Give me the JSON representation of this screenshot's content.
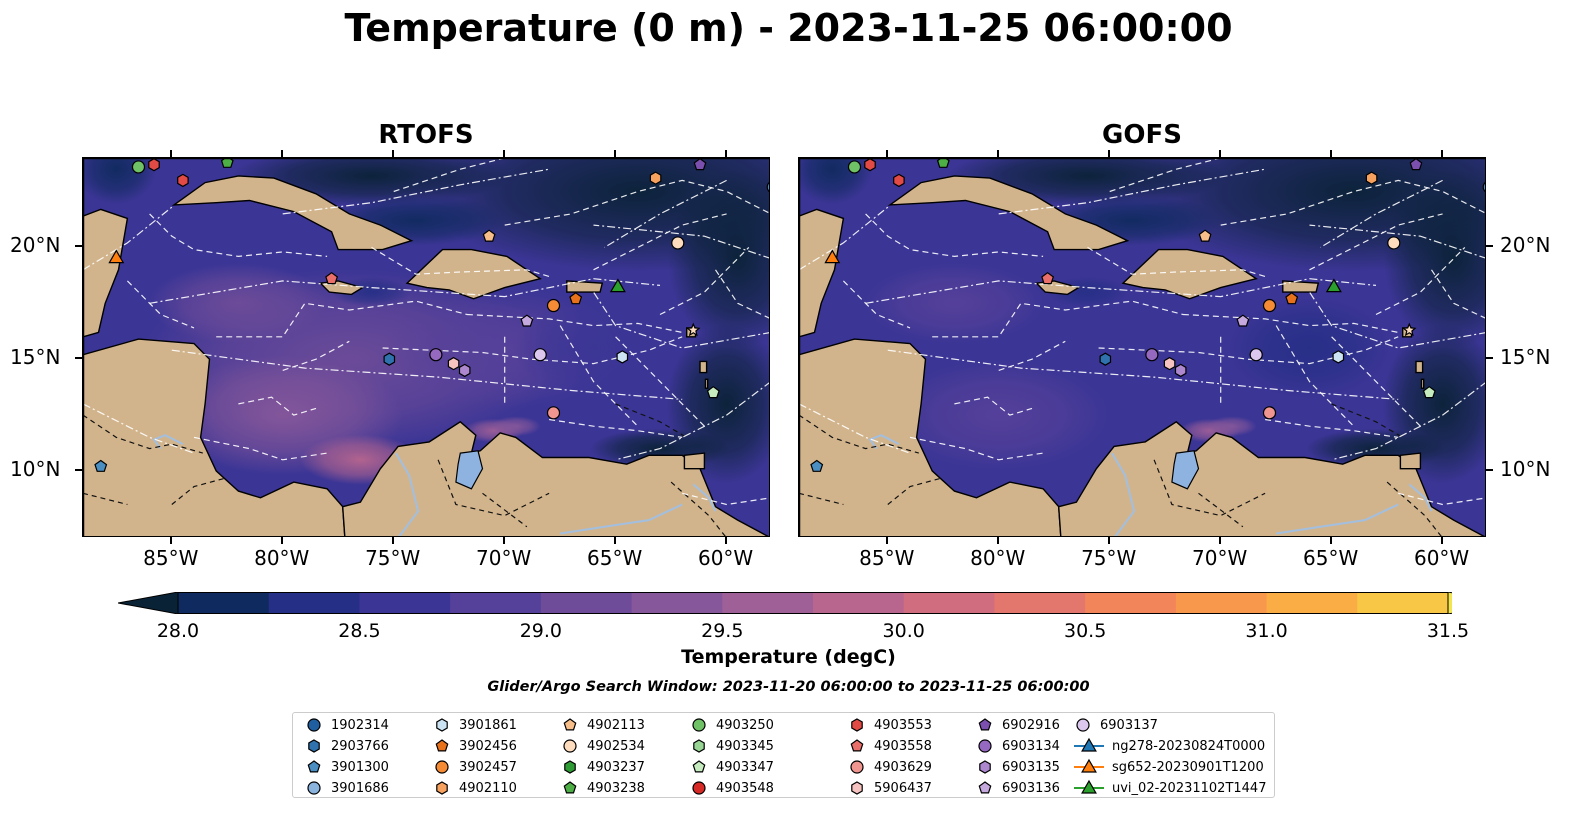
{
  "title": "Temperature (0 m) - 2023-11-25 06:00:00",
  "panels": [
    {
      "title": "RTOFS",
      "palette": "rtofs"
    },
    {
      "title": "GOFS",
      "palette": "gofs"
    }
  ],
  "axes": {
    "lon_ticks": [
      "85°W",
      "80°W",
      "75°W",
      "70°W",
      "65°W",
      "60°W"
    ],
    "lat_ticks": [
      "20°N",
      "15°N",
      "10°N"
    ],
    "lon_range": [
      -89,
      -58
    ],
    "lat_range": [
      7,
      24
    ]
  },
  "colorbar": {
    "label": "Temperature (degC)",
    "ticks": [
      "28.0",
      "28.5",
      "29.0",
      "29.5",
      "30.0",
      "30.5",
      "31.0",
      "31.5"
    ],
    "min": 28.0,
    "max": 31.5,
    "colors": [
      "#0a2236",
      "#0f2a5e",
      "#262f86",
      "#3b3595",
      "#56419a",
      "#6e4c99",
      "#86579a",
      "#9f5f97",
      "#b8668e",
      "#d06e80",
      "#e4776d",
      "#f2855a",
      "#f8984c",
      "#fbad45",
      "#f8c746",
      "#f2e550"
    ]
  },
  "search_window": "Glider/Argo Search Window: 2023-11-20 06:00:00 to 2023-11-25 06:00:00",
  "legend": {
    "columns": [
      [
        {
          "label": "1902314",
          "marker": "circle",
          "color": "#1f5fa0"
        },
        {
          "label": "2903766",
          "marker": "hexagon",
          "color": "#2f72ad"
        },
        {
          "label": "3901300",
          "marker": "pentagon",
          "color": "#4a8ec2"
        },
        {
          "label": "3901686",
          "marker": "circle",
          "color": "#8ab4de"
        }
      ],
      [
        {
          "label": "3901861",
          "marker": "hexagon",
          "color": "#cbe3f3"
        },
        {
          "label": "3902456",
          "marker": "pentagon",
          "color": "#e8721c"
        },
        {
          "label": "3902457",
          "marker": "circle",
          "color": "#f58b35"
        },
        {
          "label": "4902110",
          "marker": "hexagon",
          "color": "#f7a15e"
        }
      ],
      [
        {
          "label": "4902113",
          "marker": "pentagon",
          "color": "#f8be8a"
        },
        {
          "label": "4902534",
          "marker": "circle",
          "color": "#fcdcbd"
        },
        {
          "label": "4903237",
          "marker": "hexagon",
          "color": "#2e9b35"
        },
        {
          "label": "4903238",
          "marker": "pentagon",
          "color": "#4cae44"
        }
      ],
      [
        {
          "label": "4903250",
          "marker": "circle",
          "color": "#6fc266"
        },
        {
          "label": "4903345",
          "marker": "hexagon",
          "color": "#98d594"
        },
        {
          "label": "4903347",
          "marker": "pentagon",
          "color": "#c5ebbf"
        },
        {
          "label": "4903548",
          "marker": "circle",
          "color": "#d62a26"
        }
      ],
      [
        {
          "label": "4903553",
          "marker": "hexagon",
          "color": "#e24a45"
        },
        {
          "label": "4903558",
          "marker": "pentagon",
          "color": "#ea6f6a"
        },
        {
          "label": "4903629",
          "marker": "circle",
          "color": "#f09590"
        },
        {
          "label": "5906437",
          "marker": "hexagon",
          "color": "#f7c3c0"
        }
      ],
      [
        {
          "label": "6902916",
          "marker": "pentagon",
          "color": "#7b4fae"
        },
        {
          "label": "6903134",
          "marker": "circle",
          "color": "#9669c0"
        },
        {
          "label": "6903135",
          "marker": "hexagon",
          "color": "#ad88cf"
        },
        {
          "label": "6903136",
          "marker": "pentagon",
          "color": "#c6a9de"
        }
      ],
      [
        {
          "label": "6903137",
          "marker": "circle",
          "color": "#dcc8ee"
        },
        {
          "label": "ng278-20230824T0000",
          "marker": "triangle-line",
          "color": "#1f77b4"
        },
        {
          "label": "sg652-20230901T1200",
          "marker": "triangle-line",
          "color": "#ff7f0e"
        },
        {
          "label": "uvi_02-20231102T1447",
          "marker": "triangle-line",
          "color": "#2ca02c"
        }
      ]
    ]
  },
  "map_points": [
    {
      "lon": -86.5,
      "lat": 23.6,
      "marker": "circle",
      "color": "#6fc266"
    },
    {
      "lon": -85.8,
      "lat": 23.7,
      "marker": "hexagon",
      "color": "#e24a45"
    },
    {
      "lon": -84.5,
      "lat": 23.0,
      "marker": "hexagon",
      "color": "#e24a45"
    },
    {
      "lon": -82.5,
      "lat": 23.8,
      "marker": "pentagon",
      "color": "#4cae44"
    },
    {
      "lon": -63.2,
      "lat": 23.1,
      "marker": "hexagon",
      "color": "#f7a15e"
    },
    {
      "lon": -61.2,
      "lat": 23.7,
      "marker": "pentagon",
      "color": "#7b4fae"
    },
    {
      "lon": -87.5,
      "lat": 19.5,
      "marker": "triangle",
      "color": "#ff7f0e"
    },
    {
      "lon": -70.7,
      "lat": 20.5,
      "marker": "pentagon",
      "color": "#f8be8a"
    },
    {
      "lon": -62.2,
      "lat": 20.2,
      "marker": "circle",
      "color": "#fcdcbd"
    },
    {
      "lon": -77.8,
      "lat": 18.6,
      "marker": "pentagon",
      "color": "#ea6f6a"
    },
    {
      "lon": -67.8,
      "lat": 17.4,
      "marker": "circle",
      "color": "#f58b35"
    },
    {
      "lon": -66.8,
      "lat": 17.7,
      "marker": "pentagon",
      "color": "#e8721c"
    },
    {
      "lon": -64.9,
      "lat": 18.2,
      "marker": "triangle",
      "color": "#2ca02c"
    },
    {
      "lon": -69.0,
      "lat": 16.7,
      "marker": "pentagon",
      "color": "#c6a9de"
    },
    {
      "lon": -61.5,
      "lat": 16.3,
      "marker": "star",
      "color": "#fcdcbd"
    },
    {
      "lon": -75.2,
      "lat": 15.0,
      "marker": "hexagon",
      "color": "#2f72ad"
    },
    {
      "lon": -73.1,
      "lat": 15.2,
      "marker": "circle",
      "color": "#9669c0"
    },
    {
      "lon": -72.3,
      "lat": 14.8,
      "marker": "hexagon",
      "color": "#f7c3c0"
    },
    {
      "lon": -71.8,
      "lat": 14.5,
      "marker": "hexagon",
      "color": "#ad88cf"
    },
    {
      "lon": -68.4,
      "lat": 15.2,
      "marker": "circle",
      "color": "#dcc8ee"
    },
    {
      "lon": -64.7,
      "lat": 15.1,
      "marker": "hexagon",
      "color": "#cbe3f3"
    },
    {
      "lon": -60.6,
      "lat": 13.5,
      "marker": "pentagon",
      "color": "#c5ebbf"
    },
    {
      "lon": -67.8,
      "lat": 12.6,
      "marker": "circle",
      "color": "#f09590"
    },
    {
      "lon": -88.2,
      "lat": 10.2,
      "marker": "pentagon",
      "color": "#4a8ec2"
    },
    {
      "lon": -57.9,
      "lat": 22.7,
      "marker": "circle",
      "color": "#4a8ec2"
    }
  ]
}
